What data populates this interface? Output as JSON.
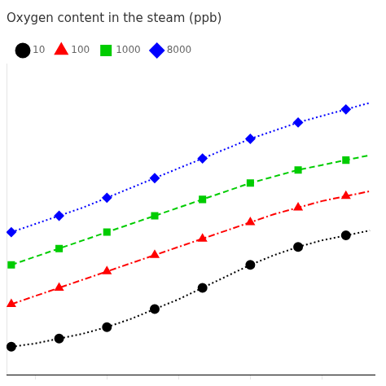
{
  "chart_data": {
    "type": "line",
    "title": "Oxygen content in the steam (ppb)",
    "x": [
      150,
      160,
      170,
      180,
      190,
      200,
      210,
      220,
      230,
      240,
      250,
      260,
      270,
      280,
      290,
      300
    ],
    "series": [
      {
        "name": "10",
        "color": "black",
        "line_style": "dotted",
        "marker": "o",
        "values": [
          0.02,
          0.04,
          0.07,
          0.1,
          0.14,
          0.19,
          0.25,
          0.31,
          0.38,
          0.45,
          0.52,
          0.58,
          0.63,
          0.67,
          0.7,
          0.73
        ]
      },
      {
        "name": "100",
        "color": "red",
        "line_style": "dashdot",
        "marker": "^",
        "values": [
          0.28,
          0.33,
          0.38,
          0.43,
          0.48,
          0.53,
          0.58,
          0.63,
          0.68,
          0.73,
          0.78,
          0.83,
          0.87,
          0.91,
          0.94,
          0.97
        ]
      },
      {
        "name": "1000",
        "color": "#00cc00",
        "line_style": "dashed",
        "marker": "s",
        "values": [
          0.52,
          0.57,
          0.62,
          0.67,
          0.72,
          0.77,
          0.82,
          0.87,
          0.92,
          0.97,
          1.02,
          1.06,
          1.1,
          1.13,
          1.16,
          1.19
        ]
      },
      {
        "name": "8000",
        "color": "blue",
        "line_style": "dotted",
        "marker": "D",
        "values": [
          0.72,
          0.77,
          0.82,
          0.87,
          0.93,
          0.99,
          1.05,
          1.11,
          1.17,
          1.23,
          1.29,
          1.34,
          1.39,
          1.43,
          1.47,
          1.51
        ]
      }
    ],
    "xlim": [
      148,
      302
    ],
    "xticks": [
      160,
      190,
      220,
      250,
      280
    ],
    "ylim": [
      -0.15,
      1.75
    ],
    "tick_labels": false,
    "grid": false,
    "legend": "upper left"
  }
}
